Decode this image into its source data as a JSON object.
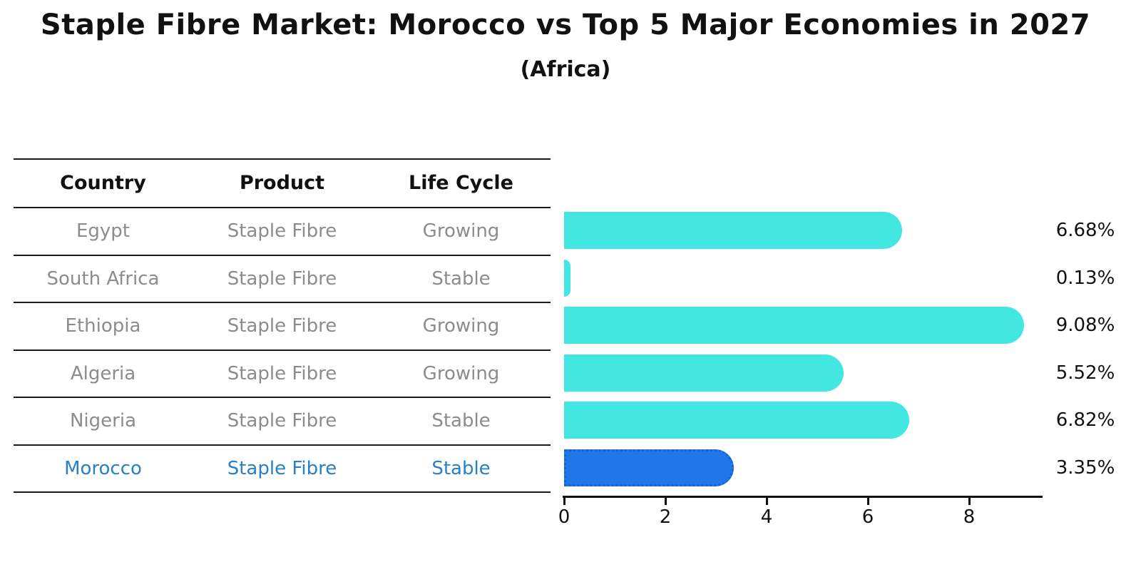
{
  "title": "Staple Fibre Market: Morocco vs Top 5 Major Economies in 2027",
  "subtitle": "(Africa)",
  "table": {
    "headers": [
      "Country",
      "Product",
      "Life Cycle"
    ],
    "rows": [
      {
        "country": "Egypt",
        "product": "Staple Fibre",
        "life_cycle": "Growing",
        "highlight": false
      },
      {
        "country": "South Africa",
        "product": "Staple Fibre",
        "life_cycle": "Stable",
        "highlight": false
      },
      {
        "country": "Ethiopia",
        "product": "Staple Fibre",
        "life_cycle": "Growing",
        "highlight": false
      },
      {
        "country": "Algeria",
        "product": "Staple Fibre",
        "life_cycle": "Growing",
        "highlight": false
      },
      {
        "country": "Nigeria",
        "product": "Staple Fibre",
        "life_cycle": "Stable",
        "highlight": false
      },
      {
        "country": "Morocco",
        "product": "Staple Fibre",
        "life_cycle": "Stable",
        "highlight": true
      }
    ]
  },
  "chart_data": {
    "type": "bar",
    "orientation": "horizontal",
    "title": "Staple Fibre Market: Morocco vs Top 5 Major Economies in 2027",
    "subtitle": "(Africa)",
    "categories": [
      "Egypt",
      "South Africa",
      "Ethiopia",
      "Algeria",
      "Nigeria",
      "Morocco"
    ],
    "values": [
      6.68,
      0.13,
      9.08,
      5.52,
      6.82,
      3.35
    ],
    "value_labels": [
      "6.68%",
      "0.13%",
      "9.08%",
      "5.52%",
      "6.82%",
      "3.35%"
    ],
    "highlight_index": 5,
    "xlim": [
      0,
      9.45
    ],
    "x_ticks": [
      0,
      2,
      4,
      6,
      8
    ],
    "grid": false,
    "legend": false,
    "bar_color": "#41e7e0",
    "highlight_bar_color": "#2277e8",
    "highlight_border_color": "#1a62d2",
    "highlight_text_color": "#2980c9",
    "table_text_color": "#8c8c8c",
    "header_text_color": "#111111"
  }
}
